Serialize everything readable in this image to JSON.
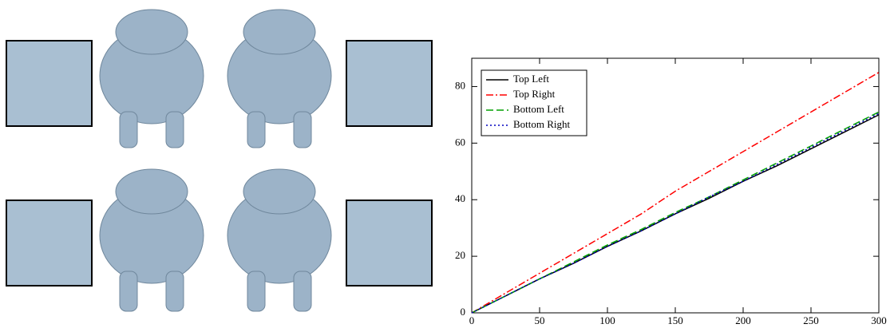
{
  "chart_data": {
    "type": "line",
    "x": [
      0,
      25,
      50,
      75,
      100,
      125,
      150,
      175,
      200,
      225,
      250,
      275,
      300
    ],
    "series": [
      {
        "name": "Top Left",
        "color": "#000000",
        "dash": "solid",
        "values": [
          0,
          6,
          12,
          17.5,
          23.5,
          29,
          35,
          40.5,
          46.5,
          52,
          58,
          64,
          70
        ]
      },
      {
        "name": "Top Right",
        "color": "#ff0000",
        "dash": "dashdot",
        "values": [
          0,
          7,
          14,
          21,
          28,
          35,
          43,
          50,
          57,
          64,
          71,
          78,
          85
        ]
      },
      {
        "name": "Bottom Left",
        "color": "#00a000",
        "dash": "dashed",
        "values": [
          0,
          6,
          12,
          18,
          24,
          29.5,
          35.5,
          41,
          47,
          53,
          59,
          65,
          71
        ]
      },
      {
        "name": "Bottom Right",
        "color": "#0000c0",
        "dash": "dotted",
        "values": [
          0,
          6,
          12,
          17.5,
          23.5,
          29,
          35,
          41,
          46.5,
          52.5,
          58.5,
          64.5,
          70.5
        ]
      }
    ],
    "xlim": [
      0,
      300
    ],
    "xticks": [
      0,
      50,
      100,
      150,
      200,
      250,
      300
    ],
    "ylim": [
      0,
      90
    ],
    "yticks": [
      0,
      20,
      40,
      60,
      80
    ],
    "grid": false,
    "legend": "upper left"
  }
}
